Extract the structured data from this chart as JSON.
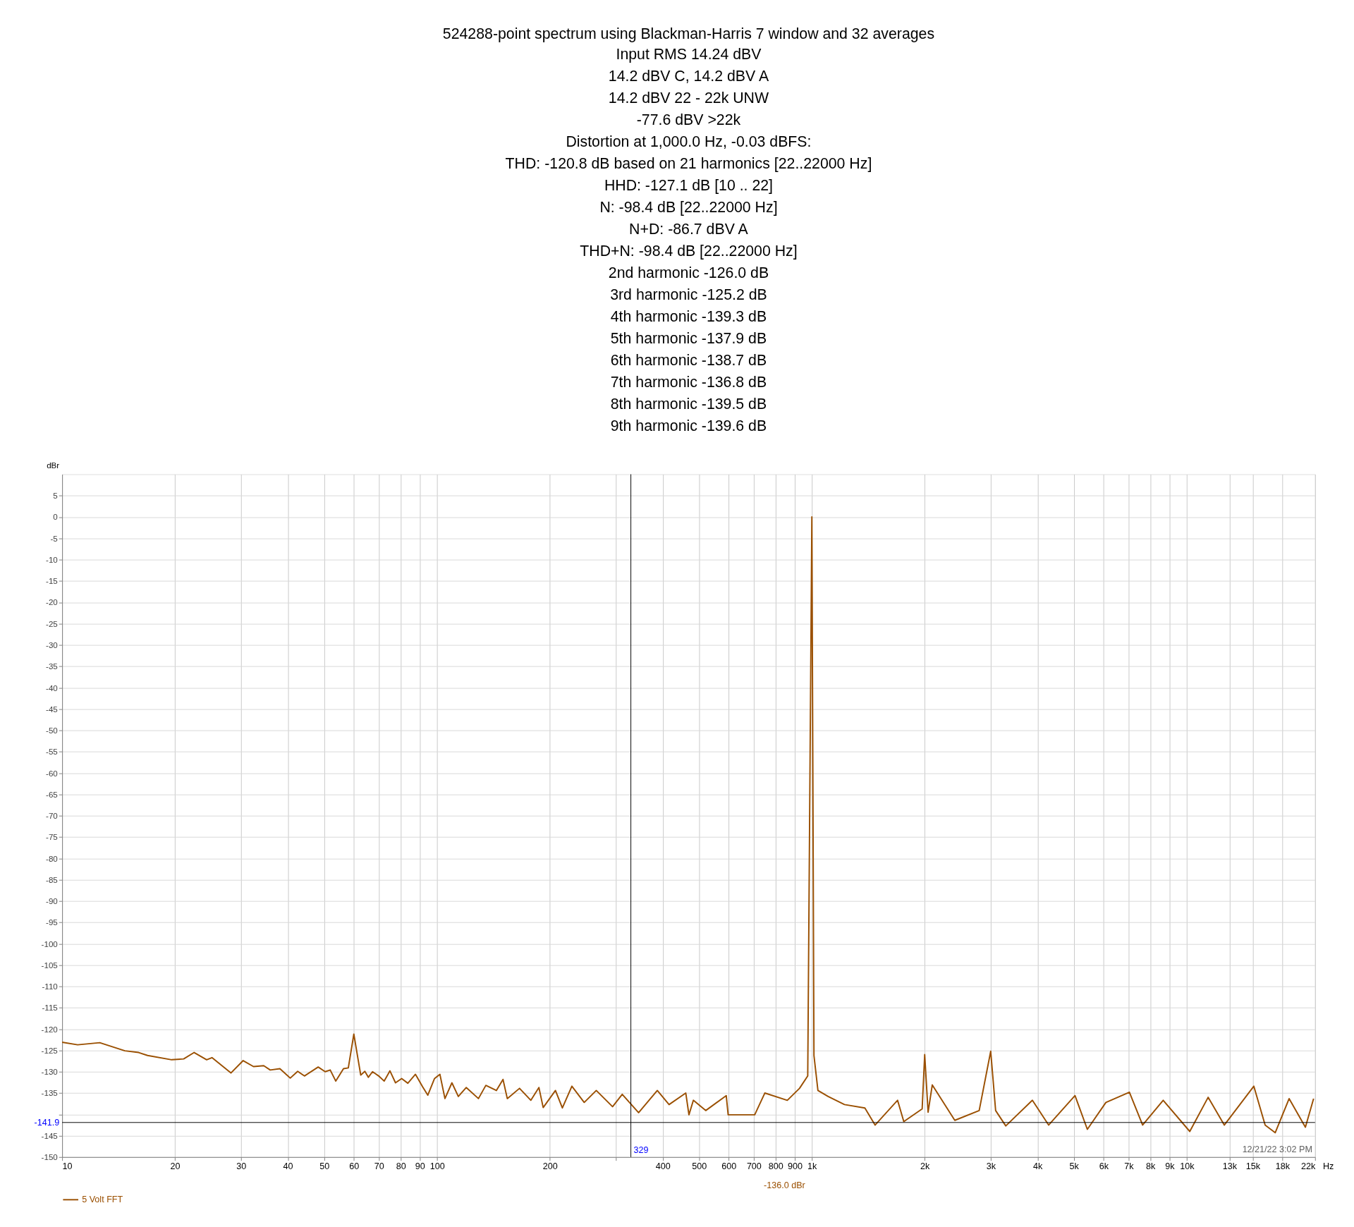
{
  "chart_data": {
    "type": "line",
    "title": "524288-point spectrum using Blackman-Harris 7 window and 32 averages",
    "subtitle": "Input RMS 14.24 dBV\n14.2 dBV C, 14.2 dBV A\n14.2 dBV 22 - 22k UNW\n-77.6 dBV >22k\nDistortion at 1,000.0 Hz, -0.03 dBFS:\nTHD: -120.8 dB based on 21 harmonics [22..22000 Hz]\nHHD: -127.1 dB [10 .. 22]\nN: -98.4 dB [22..22000 Hz]\nN+D: -86.7 dBV A\nTHD+N: -98.4 dB [22..22000 Hz]\n2nd harmonic -126.0 dB\n3rd harmonic -125.2 dB\n4th harmonic -139.3 dB\n5th harmonic -137.9 dB\n6th harmonic -138.7 dB\n7th harmonic -136.8 dB\n8th harmonic -139.5 dB\n9th harmonic -139.6 dB",
    "ylabel": "dBr",
    "log": "x",
    "grid": true,
    "legend": "bottom",
    "line_style": "solid",
    "marker": "none",
    "xlim": [
      10,
      22000
    ],
    "ylim": [
      -150,
      10
    ],
    "xticks": [
      10,
      20,
      30,
      40,
      50,
      60,
      70,
      80,
      90,
      100,
      200,
      {
        "value": 300,
        "label": null
      },
      400,
      500,
      600,
      700,
      800,
      900,
      {
        "value": 1000,
        "label": "1k"
      },
      {
        "value": 2000,
        "label": "2k"
      },
      {
        "value": 3000,
        "label": "3k"
      },
      {
        "value": 4000,
        "label": "4k"
      },
      {
        "value": 5000,
        "label": "5k"
      },
      {
        "value": 6000,
        "label": "6k"
      },
      {
        "value": 7000,
        "label": "7k"
      },
      {
        "value": 8000,
        "label": "8k"
      },
      {
        "value": 9000,
        "label": "9k"
      },
      {
        "value": 10000,
        "label": "10k"
      },
      {
        "value": 13000,
        "label": "13k"
      },
      {
        "value": 15000,
        "label": "15k"
      },
      {
        "value": 18000,
        "label": "18k"
      },
      {
        "value": 22000,
        "label": "22k"
      }
    ],
    "xlabel": "Hz",
    "yticks": [
      -150,
      -145,
      {
        "value": -140,
        "label": null
      },
      -135,
      -130,
      -125,
      -120,
      -115,
      -110,
      -105,
      -100,
      -95,
      -90,
      -85,
      -80,
      -75,
      -70,
      -65,
      -60,
      -55,
      -50,
      -45,
      -40,
      -35,
      -30,
      -25,
      -20,
      -15,
      -10,
      -5,
      0,
      5
    ],
    "ref_lines": [
      {
        "axis": "x",
        "value": 329,
        "label": "329",
        "color": "#000000"
      },
      {
        "axis": "y",
        "value": -141.9,
        "label": "-141.9",
        "color": "#000000"
      }
    ],
    "annotations": [
      "12/21/22 3:02 PM",
      "-136.0 dBr"
    ],
    "series": [
      {
        "name": "5 Volt FFT",
        "color": "#9a4f00",
        "x": [
          10,
          11.0,
          12.6,
          14.7,
          16.0,
          16.9,
          19.6,
          21.1,
          22.5,
          24.3,
          25.1,
          28.2,
          30.4,
          32.4,
          34.5,
          35.9,
          38.1,
          40.6,
          42.5,
          44.3,
          48.2,
          50.3,
          51.9,
          53.7,
          56.3,
          58.0,
          60.0,
          62.6,
          64.2,
          65.6,
          67.3,
          69.9,
          72.3,
          74.9,
          77.5,
          80.5,
          83.6,
          87.6,
          91.5,
          94.5,
          98.5,
          101.8,
          105,
          109.6,
          114,
          119.7,
          129,
          135,
          144,
          150,
          154,
          166,
          178,
          187,
          192,
          207,
          216,
          229,
          247,
          266,
          294,
          312,
          345,
          387,
          416,
          461,
          470,
          483,
          521,
          591,
          598,
          704,
          749,
          860,
          927,
          975,
          1000,
          1013,
          1038,
          1105,
          1222,
          1385,
          1475,
          1693,
          1759,
          1969,
          2000,
          2042,
          2095,
          2406,
          2795,
          3000,
          3092,
          3291,
          3875,
          4283,
          5035,
          5431,
          6087,
          7032,
          7627,
          8654,
          10190,
          11405,
          12600,
          15100,
          16190,
          17220,
          18760,
          20730,
          21800
        ],
        "values": [
          -123.1,
          -123.7,
          -123.2,
          -125.1,
          -125.5,
          -126.2,
          -127.2,
          -127.0,
          -125.5,
          -127.2,
          -126.7,
          -130.3,
          -127.4,
          -128.8,
          -128.6,
          -129.6,
          -129.3,
          -131.5,
          -129.9,
          -131.0,
          -128.9,
          -130.0,
          -129.6,
          -132.2,
          -129.3,
          -129.1,
          -121.2,
          -130.8,
          -129.9,
          -131.3,
          -130.0,
          -131.0,
          -132.2,
          -129.8,
          -132.6,
          -131.6,
          -132.7,
          -130.6,
          -133.5,
          -135.5,
          -131.6,
          -130.6,
          -136.3,
          -132.6,
          -135.8,
          -133.7,
          -136.3,
          -133.2,
          -134.4,
          -131.8,
          -136.3,
          -133.9,
          -136.7,
          -133.7,
          -138.4,
          -134.4,
          -138.5,
          -133.4,
          -137.2,
          -134.4,
          -138.2,
          -135.3,
          -139.6,
          -134.4,
          -137.7,
          -135.0,
          -140.1,
          -136.7,
          -139.1,
          -135.6,
          -140.1,
          -140.1,
          -135.0,
          -136.7,
          -133.9,
          -131.0,
          0,
          -126.2,
          -134.4,
          -135.8,
          -137.7,
          -138.5,
          -142.5,
          -136.7,
          -141.7,
          -138.7,
          -126.0,
          -139.5,
          -133.1,
          -141.4,
          -139.1,
          -125.2,
          -139.1,
          -142.7,
          -136.7,
          -142.5,
          -135.6,
          -143.5,
          -137.2,
          -134.8,
          -142.5,
          -136.7,
          -144.0,
          -136.0,
          -142.5,
          -133.4,
          -142.5,
          -144.3,
          -136.3,
          -143.0,
          -136.3
        ]
      }
    ]
  }
}
